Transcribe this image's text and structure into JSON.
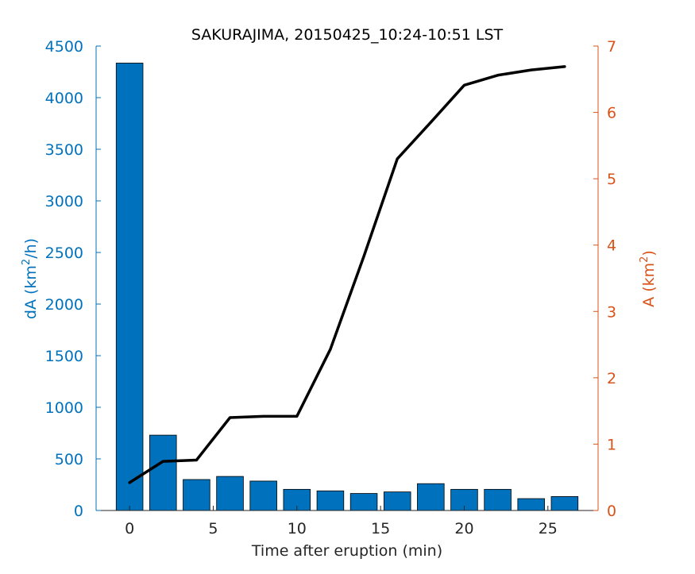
{
  "chart_data": {
    "type": "bar+line",
    "title": "SAKURAJIMA, 20150425_10:24-10:51 LST",
    "xlabel": "Time after eruption (min)",
    "ylabel_left": {
      "prefix": "dA (km",
      "sup": "2",
      "suffix": "/h)"
    },
    "ylabel_right": {
      "prefix": "A (km",
      "sup": "2",
      "suffix": ")"
    },
    "xlim": [
      -2,
      28
    ],
    "ylim_left": [
      0,
      4500
    ],
    "ylim_right": [
      0,
      7
    ],
    "xticks": [
      0,
      5,
      10,
      15,
      20,
      25
    ],
    "yticks_left": [
      0,
      500,
      1000,
      1500,
      2000,
      2500,
      3000,
      3500,
      4000,
      4500
    ],
    "yticks_right": [
      0,
      1,
      2,
      3,
      4,
      5,
      6,
      7
    ],
    "bars": {
      "name": "dA",
      "x": [
        0,
        2,
        4,
        6,
        8,
        10,
        12,
        14,
        16,
        18,
        20,
        22,
        24,
        26
      ],
      "values": [
        4335,
        730,
        300,
        330,
        285,
        205,
        190,
        165,
        180,
        260,
        205,
        205,
        115,
        135
      ],
      "color": "#0072BD"
    },
    "line": {
      "name": "A",
      "x": [
        0,
        2,
        4,
        6,
        8,
        10,
        12,
        14,
        16,
        18,
        20,
        22,
        24,
        26
      ],
      "values": [
        0.42,
        0.74,
        0.76,
        1.4,
        1.42,
        1.42,
        2.43,
        3.83,
        5.3,
        5.85,
        6.41,
        6.56,
        6.64,
        6.69
      ],
      "color": "#000000"
    },
    "left_axis_color": "#0072BD",
    "right_axis_color": "#D95319",
    "grid": false,
    "legend": "none"
  }
}
